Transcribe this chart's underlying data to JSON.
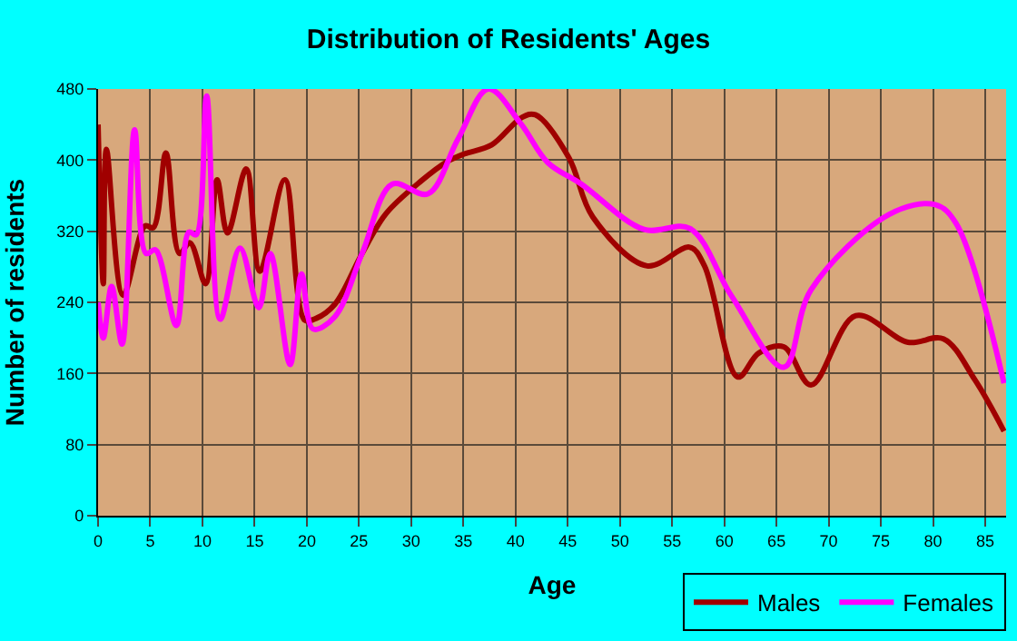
{
  "chart_data": {
    "type": "line",
    "title": "Distribution of Residents' Ages",
    "xlabel": "Age",
    "ylabel": "Number of residents",
    "xlim": [
      0,
      87
    ],
    "xticks": [
      0,
      5,
      10,
      15,
      20,
      25,
      30,
      35,
      40,
      45,
      50,
      55,
      60,
      65,
      70,
      75,
      80,
      85
    ],
    "ylim": [
      0,
      480
    ],
    "yticks": [
      0,
      80,
      160,
      240,
      320,
      400,
      480
    ],
    "grid": true,
    "legend": "bottom right",
    "marker": "none",
    "line_style": "solid",
    "series": [
      {
        "name": "Males",
        "color": "#a00000",
        "x": [
          0,
          0.5,
          0.8,
          2.4,
          4.5,
          5.3,
          6.5,
          7.8,
          8.8,
          10.3,
          11.4,
          12.4,
          14.2,
          15.5,
          17.9,
          19.8,
          20.9,
          22.7,
          25.3,
          27.6,
          31,
          33.4,
          35.1,
          37.7,
          40.6,
          41.9,
          45.1,
          47.4,
          52.6,
          56.7,
          58.1,
          61.3,
          63.3,
          65.7,
          68.3,
          72.6,
          77.6,
          81,
          84,
          86.8
        ],
        "values": [
          440,
          261,
          412,
          248,
          326,
          324,
          408,
          295,
          307,
          261,
          378,
          318,
          390,
          275,
          378,
          220,
          222,
          238,
          295,
          340,
          377,
          398,
          407,
          417,
          448,
          451,
          403,
          336,
          281,
          302,
          281,
          156,
          183,
          190,
          147,
          225,
          195,
          199,
          153,
          95
        ]
      },
      {
        "name": "Females",
        "color": "#ff00ff",
        "x": [
          0,
          0.5,
          1.3,
          2.3,
          3.5,
          4.6,
          5.5,
          7.5,
          8.7,
          9.4,
          10.4,
          11.7,
          13.6,
          15.4,
          16.5,
          18.4,
          19.5,
          20.6,
          22.7,
          25.3,
          28.2,
          31.6,
          34.5,
          37.4,
          40.5,
          43.1,
          46.3,
          52.3,
          56.7,
          60.7,
          65.7,
          68.3,
          75.8,
          80.2,
          82.2,
          86.8
        ],
        "values": [
          240,
          200,
          258,
          193,
          434,
          295,
          299,
          214,
          319,
          316,
          472,
          221,
          301,
          234,
          295,
          170,
          272,
          210,
          224,
          295,
          373,
          362,
          424,
          480,
          441,
          397,
          373,
          322,
          323,
          247,
          167,
          254,
          339,
          350,
          329,
          149
        ]
      }
    ]
  }
}
